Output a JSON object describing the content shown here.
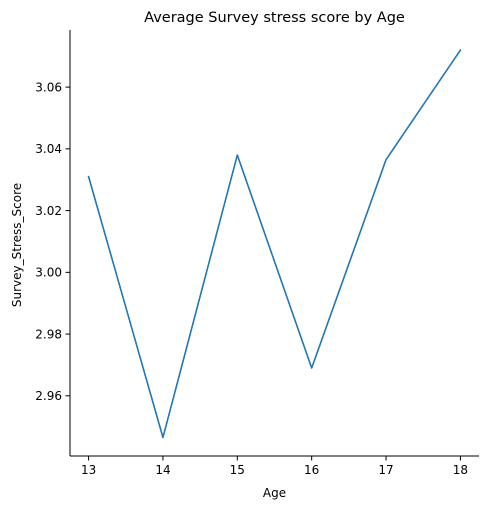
{
  "chart_data": {
    "type": "line",
    "title": "Average Survey stress score by Age",
    "xlabel": "Age",
    "ylabel": "Survey_Stress_Score",
    "x": [
      13,
      14,
      15,
      16,
      17,
      18
    ],
    "series": [
      {
        "values": [
          3.031,
          2.9465,
          3.038,
          2.969,
          3.0365,
          3.072
        ]
      }
    ],
    "x_ticks": [
      13,
      14,
      15,
      16,
      17,
      18
    ],
    "y_ticks": [
      2.96,
      2.98,
      3.0,
      3.02,
      3.04,
      3.06
    ],
    "y_tick_labels": [
      "2.96",
      "2.98",
      "3.00",
      "3.02",
      "3.04",
      "3.06"
    ],
    "xlim": [
      12.75,
      18.25
    ],
    "ylim": [
      2.9405,
      3.0785
    ],
    "grid": false,
    "line_color": "#1f77b4"
  }
}
